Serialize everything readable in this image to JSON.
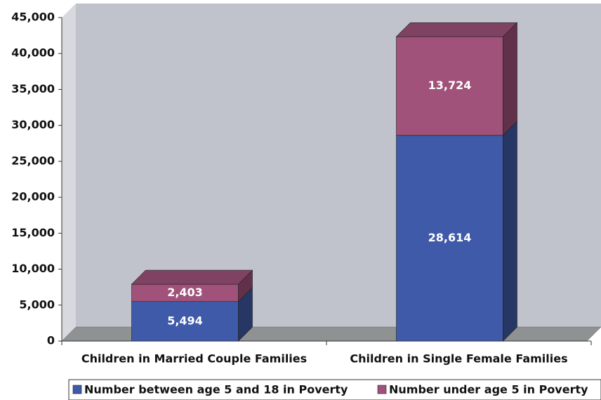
{
  "chart_data": {
    "type": "bar3d_stacked",
    "categories": [
      "Children in Married Couple Families",
      "Children in Single Female Families"
    ],
    "series": [
      {
        "name": "Number between age 5 and 18 in Poverty",
        "color": "#3f5aa8",
        "values": [
          5494,
          28614
        ],
        "value_labels": [
          "5,494",
          "28,614"
        ]
      },
      {
        "name": "Number under age 5 in Poverty",
        "color": "#a0527a",
        "values": [
          2403,
          13724
        ],
        "value_labels": [
          "2,403",
          "13,724"
        ]
      }
    ],
    "ylim": [
      0,
      45000
    ],
    "yticks": [
      0,
      {
        "value": 5000,
        "label": "5,000"
      },
      {
        "value": 10000,
        "label": "10,000"
      },
      {
        "value": 15000,
        "label": "15,000"
      },
      {
        "value": 20000,
        "label": "20,000"
      },
      {
        "value": 25000,
        "label": "25,000"
      },
      {
        "value": 30000,
        "label": "30,000"
      },
      {
        "value": 35000,
        "label": "35,000"
      },
      {
        "value": 40000,
        "label": "40,000"
      },
      {
        "value": 45000,
        "label": "45,000"
      }
    ],
    "legend": "bottom"
  }
}
